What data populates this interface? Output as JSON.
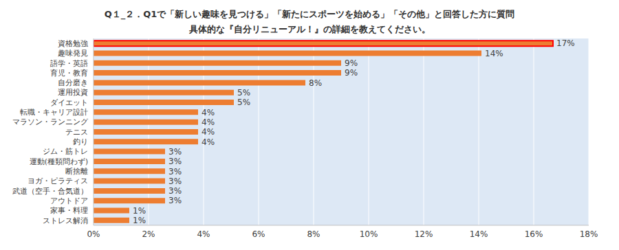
{
  "chart_data": {
    "type": "bar",
    "orientation": "horizontal",
    "title": "Q１_２．Q1で「新しい趣味を見つける」「新たにスポーツを始める」「その他」と回答した方に質問",
    "subtitle": "具体的な『自分リニューアル！』の詳細を教えてください。",
    "categories": [
      "資格勉強",
      "趣味発見",
      "語学・英語",
      "育児・教育",
      "自分磨き",
      "運用投資",
      "ダイエット",
      "転職・キャリア設計",
      "マラソン・ランニング",
      "テニス",
      "釣り",
      "ジム・筋トレ",
      "運動(種類問わず)",
      "断捨離",
      "ヨガ・ピラティス",
      "武道（空手・合気道）",
      "アウトドア",
      "家事・料理",
      "ストレス解消"
    ],
    "values": [
      16.7,
      14.1,
      9,
      9,
      7.7,
      5.1,
      5.1,
      3.8,
      3.8,
      3.8,
      3.8,
      2.6,
      2.6,
      2.6,
      2.6,
      2.6,
      2.6,
      1.3,
      1.3
    ],
    "value_labels": [
      "17%",
      "14%",
      "9%",
      "9%",
      "8%",
      "5%",
      "5%",
      "4%",
      "4%",
      "4%",
      "4%",
      "3%",
      "3%",
      "3%",
      "3%",
      "3%",
      "3%",
      "1%",
      "1%"
    ],
    "data_labels": true,
    "color": "#ed7d31",
    "xlim": [
      0,
      18
    ],
    "xticks": [
      {
        "value": 0,
        "label": "0%"
      },
      {
        "value": 2,
        "label": "2%"
      },
      {
        "value": 4,
        "label": "4%"
      },
      {
        "value": 6,
        "label": "6%"
      },
      {
        "value": 8,
        "label": "8%"
      },
      {
        "value": 10,
        "label": "10%"
      },
      {
        "value": 12,
        "label": "12%"
      },
      {
        "value": 14,
        "label": "14%"
      },
      {
        "value": 16,
        "label": "16%"
      },
      {
        "value": 18,
        "label": "18%"
      }
    ],
    "grid": true
  }
}
